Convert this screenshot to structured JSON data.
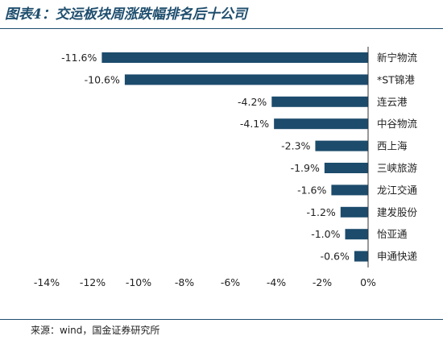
{
  "title": "图表4：交运板块周涨跌幅排名后十公司",
  "source": "来源：wind，国金证券研究所",
  "colors": {
    "bar": "#1c4b6c",
    "rule": "#1f4e6e"
  },
  "chart_data": {
    "type": "bar",
    "orientation": "horizontal",
    "categories": [
      "新宁物流",
      "*ST锦港",
      "连云港",
      "中谷物流",
      "西上海",
      "三峡旅游",
      "龙江交通",
      "建发股份",
      "怡亚通",
      "申通快递"
    ],
    "values": [
      -11.6,
      -10.6,
      -4.2,
      -4.1,
      -2.3,
      -1.9,
      -1.6,
      -1.2,
      -1.0,
      -0.6
    ],
    "value_labels": [
      "-11.6%",
      "-10.6%",
      "-4.2%",
      "-4.1%",
      "-2.3%",
      "-1.9%",
      "-1.6%",
      "-1.2%",
      "-1.0%",
      "-0.6%"
    ],
    "xlim": [
      -14,
      0
    ],
    "xticks": [
      -14,
      -12,
      -10,
      -8,
      -6,
      -4,
      -2,
      0
    ],
    "xtick_labels": [
      "-14%",
      "-12%",
      "-10%",
      "-8%",
      "-6%",
      "-4%",
      "-2%",
      "0%"
    ],
    "xlabel": "",
    "ylabel": "",
    "grid": false,
    "legend": "none"
  }
}
